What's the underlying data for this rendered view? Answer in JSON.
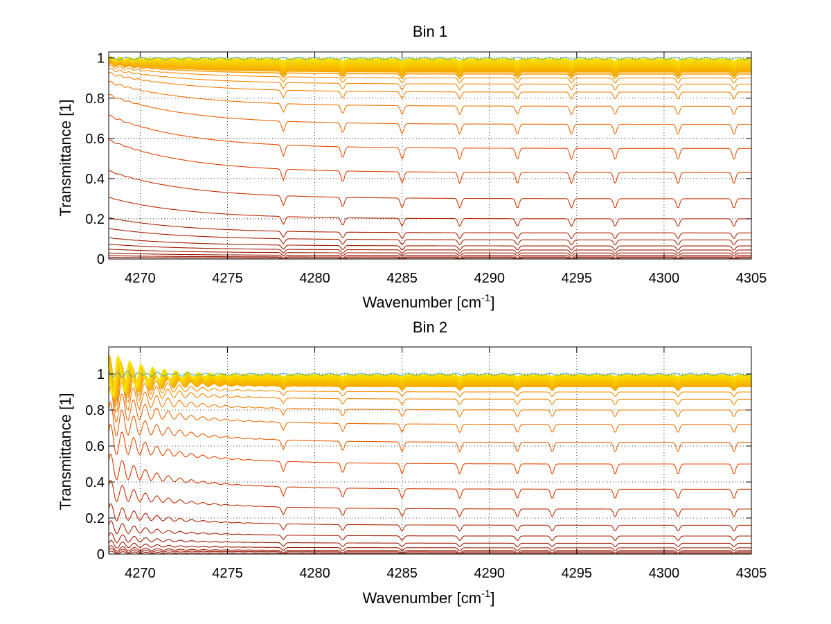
{
  "chart_data": [
    {
      "type": "line",
      "title": "Bin 1",
      "xlabel": "Wavenumber [cm",
      "xlabel_sup": "-1",
      "xlabel_end": "]",
      "ylabel": "Transmittance [1]",
      "xlim": [
        4268.2,
        4305
      ],
      "ylim": [
        0,
        1.03
      ],
      "xticks": [
        4270,
        4275,
        4280,
        4285,
        4290,
        4295,
        4300,
        4305
      ],
      "xtick_labels": [
        "4270",
        "4275",
        "4280",
        "4285",
        "4290",
        "4295",
        "4300",
        "4305"
      ],
      "yticks": [
        0,
        0.2,
        0.4,
        0.6,
        0.8,
        1
      ],
      "ytick_labels": [
        "0",
        "0.2",
        "0.4",
        "0.6",
        "0.8",
        "1"
      ],
      "grid": true,
      "series_count": 56,
      "levels_at_4305": [
        0.0,
        0.005,
        0.01,
        0.018,
        0.03,
        0.045,
        0.065,
        0.095,
        0.13,
        0.2,
        0.3,
        0.43,
        0.55,
        0.67,
        0.76,
        0.83,
        0.87,
        0.9,
        0.92,
        0.935,
        0.95,
        0.96,
        0.968,
        0.975,
        0.98,
        0.985,
        0.99
      ],
      "absorption_lines": [
        4278.2,
        4281.6,
        4285.0,
        4288.3,
        4291.6,
        4294.7,
        4297.2,
        4300.8,
        4304.0
      ],
      "low_wavenumber_rise": 0.3,
      "low_wavenumber_ripple": 0.0
    },
    {
      "type": "line",
      "title": "Bin 2",
      "xlabel": "Wavenumber [cm",
      "xlabel_sup": "-1",
      "xlabel_end": "]",
      "ylabel": "Transmittance [1]",
      "xlim": [
        4268.2,
        4305
      ],
      "ylim": [
        0,
        1.15
      ],
      "xticks": [
        4270,
        4275,
        4280,
        4285,
        4290,
        4295,
        4300,
        4305
      ],
      "xtick_labels": [
        "4270",
        "4275",
        "4280",
        "4285",
        "4290",
        "4295",
        "4300",
        "4305"
      ],
      "yticks": [
        0,
        0.2,
        0.4,
        0.6,
        0.8,
        1
      ],
      "ytick_labels": [
        "0",
        "0.2",
        "0.4",
        "0.6",
        "0.8",
        "1"
      ],
      "grid": true,
      "series_count": 56,
      "levels_at_4305": [
        0.0,
        0.005,
        0.012,
        0.02,
        0.035,
        0.06,
        0.1,
        0.16,
        0.25,
        0.36,
        0.5,
        0.62,
        0.72,
        0.8,
        0.86,
        0.9,
        0.93,
        0.95,
        0.965,
        0.975,
        0.983,
        0.99
      ],
      "absorption_lines": [
        4278.2,
        4281.6,
        4285.0,
        4288.3,
        4291.6,
        4293.6,
        4297.2,
        4300.8,
        4304.0
      ],
      "low_wavenumber_rise": 0.25,
      "low_wavenumber_ripple": 0.13
    }
  ]
}
